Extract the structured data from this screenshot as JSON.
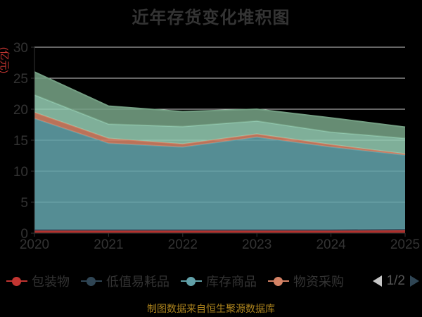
{
  "header": {
    "title": "近年存货变化堆积图"
  },
  "y_axis": {
    "unit_label": "(亿元)"
  },
  "chart_data": {
    "type": "area",
    "stacked": true,
    "title": "近年存货变化堆积图",
    "x": [
      "2020",
      "2021",
      "2022",
      "2023",
      "2024",
      "2025"
    ],
    "xlabel": "",
    "ylabel": "(亿元)",
    "ylim": [
      0,
      30
    ],
    "yticks": [
      0,
      5,
      10,
      15,
      20,
      25,
      30
    ],
    "grid": true,
    "legend_position": "bottom",
    "series": [
      {
        "name": "包装物",
        "color": "#c23531",
        "values": [
          0.4,
          0.4,
          0.4,
          0.4,
          0.4,
          0.45
        ]
      },
      {
        "name": "低值易耗品",
        "color": "#2f4554",
        "values": [
          0.2,
          0.2,
          0.2,
          0.2,
          0.2,
          0.2
        ]
      },
      {
        "name": "库存商品",
        "color": "#61a0a8",
        "values": [
          17.9,
          13.9,
          13.3,
          14.9,
          13.3,
          11.95
        ]
      },
      {
        "name": "物资采购",
        "color": "#d48265",
        "values": [
          1.0,
          0.8,
          0.5,
          0.5,
          0.4,
          0.2
        ]
      },
      {
        "name": "",
        "color": "#91c7ae",
        "values": [
          2.8,
          2.3,
          2.8,
          2.1,
          2.0,
          2.5
        ]
      },
      {
        "name": "",
        "color": "#749f83",
        "values": [
          3.7,
          2.9,
          2.4,
          1.9,
          2.3,
          1.8
        ]
      }
    ],
    "totals": [
      26.0,
      20.5,
      19.6,
      20.0,
      18.6,
      17.1
    ],
    "colors": {
      "axis": "#333333",
      "text": "#333333",
      "grid": "#cccccc",
      "background": "#000000"
    }
  },
  "legend": {
    "items": [
      {
        "label": "包装物",
        "color": "#c23531"
      },
      {
        "label": "低值易耗品",
        "color": "#2f4554"
      },
      {
        "label": "库存商品",
        "color": "#61a0a8"
      },
      {
        "label": "物资采购",
        "color": "#d48265"
      }
    ],
    "pagination": {
      "text": "1/2",
      "prev_color": "#c7c7c7",
      "next_color": "#2f4554"
    }
  },
  "footer": {
    "source": "制图数据来自恒生聚源数据库",
    "color": "#ac831d"
  }
}
